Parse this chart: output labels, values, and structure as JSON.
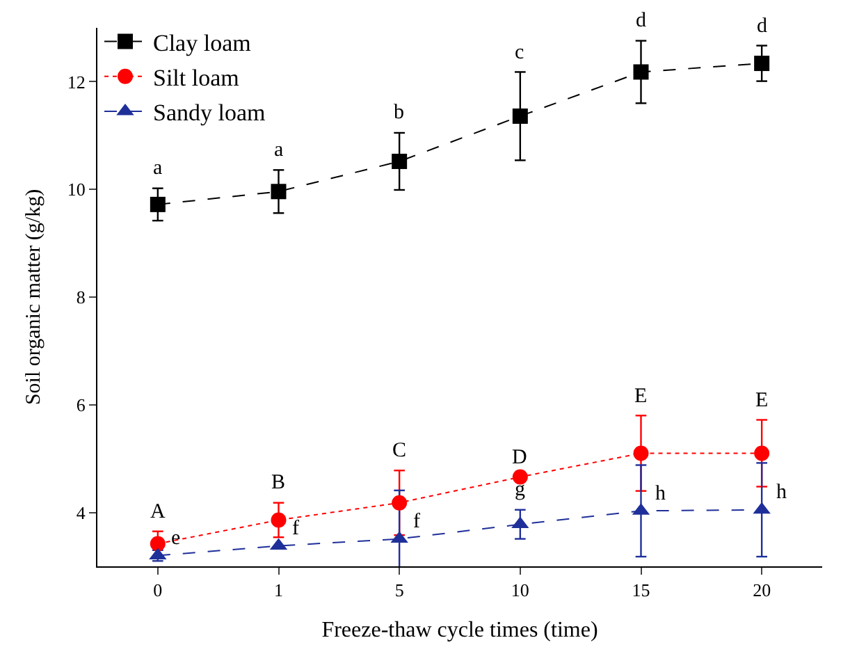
{
  "chart_data": {
    "type": "line",
    "xlabel": "Freeze-thaw cycle times (time)",
    "ylabel": "Soil organic matter (g/kg)",
    "categories": [
      "0",
      "1",
      "5",
      "10",
      "15",
      "20"
    ],
    "series": [
      {
        "name": "Clay loam",
        "color": "#000000",
        "marker": "square",
        "line_style": "dashed",
        "values": [
          9.72,
          9.96,
          10.52,
          11.36,
          12.18,
          12.34
        ],
        "errors": [
          0.3,
          0.4,
          0.53,
          0.82,
          0.58,
          0.33
        ]
      },
      {
        "name": "Silt loam",
        "color": "#ff0000",
        "marker": "circle",
        "line_style": "dotted",
        "values": [
          3.42,
          3.86,
          4.18,
          4.66,
          5.1,
          5.1
        ],
        "errors": [
          0.23,
          0.32,
          0.6,
          null,
          0.7,
          0.62
        ]
      },
      {
        "name": "Sandy loam",
        "color": "#1f2f9a",
        "marker": "triangle",
        "line_style": "dashed",
        "values": [
          3.2,
          3.38,
          3.51,
          3.78,
          4.03,
          4.05
        ],
        "errors": [
          0.1,
          null,
          0.9,
          0.27,
          0.85,
          0.87
        ]
      }
    ],
    "ylim": [
      3,
      13
    ],
    "yticks": [
      4,
      6,
      8,
      10,
      12
    ],
    "grid": false,
    "legend": "top left",
    "annotations": [
      {
        "text": "a",
        "x": "0",
        "y": 9.72
      },
      {
        "text": "a",
        "x": "1",
        "y": 9.96
      },
      {
        "text": "b",
        "x": "5",
        "y": 10.52
      },
      {
        "text": "c",
        "x": "10",
        "y": 11.36
      },
      {
        "text": "d",
        "x": "15",
        "y": 12.18
      },
      {
        "text": "d",
        "x": "20",
        "y": 12.34
      },
      {
        "text": "A",
        "x": "0",
        "y": 3.42
      },
      {
        "text": "B",
        "x": "1",
        "y": 3.86
      },
      {
        "text": "C",
        "x": "5",
        "y": 4.18
      },
      {
        "text": "D",
        "x": "10",
        "y": 4.66
      },
      {
        "text": "E",
        "x": "15",
        "y": 5.1
      },
      {
        "text": "E",
        "x": "20",
        "y": 5.1
      },
      {
        "text": "e",
        "x": "0",
        "y": 3.2
      },
      {
        "text": "f",
        "x": "1",
        "y": 3.38
      },
      {
        "text": "f",
        "x": "5",
        "y": 3.51
      },
      {
        "text": "g",
        "x": "10",
        "y": 3.78
      },
      {
        "text": "h",
        "x": "15",
        "y": 4.03
      },
      {
        "text": "h",
        "x": "20",
        "y": 4.05
      }
    ]
  }
}
